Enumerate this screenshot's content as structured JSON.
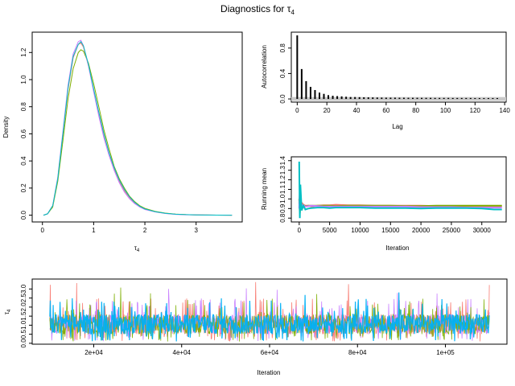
{
  "title": "Diagnostics for τ",
  "title_sub": "4",
  "chart_data": [
    {
      "type": "line",
      "panel": "density",
      "xlabel": "τ",
      "xlabel_sub": "4",
      "ylabel": "Density",
      "xlim": [
        -0.2,
        3.9
      ],
      "ylim": [
        -0.05,
        1.35
      ],
      "xticks": [
        0,
        1,
        2,
        3
      ],
      "yticks": [
        0.0,
        0.2,
        0.4,
        0.6,
        0.8,
        1.0,
        1.2
      ],
      "x": [
        0.02,
        0.1,
        0.2,
        0.3,
        0.4,
        0.5,
        0.6,
        0.7,
        0.75,
        0.8,
        0.9,
        1.0,
        1.1,
        1.2,
        1.3,
        1.4,
        1.5,
        1.6,
        1.7,
        1.8,
        1.9,
        2.0,
        2.2,
        2.4,
        2.6,
        2.8,
        3.0,
        3.2,
        3.4,
        3.7
      ],
      "series": [
        {
          "color": "#f8766d",
          "values": [
            0.0,
            0.01,
            0.07,
            0.27,
            0.6,
            0.93,
            1.16,
            1.26,
            1.27,
            1.24,
            1.1,
            0.92,
            0.75,
            0.59,
            0.46,
            0.34,
            0.25,
            0.18,
            0.13,
            0.09,
            0.06,
            0.045,
            0.025,
            0.013,
            0.007,
            0.004,
            0.002,
            0.001,
            0.0005,
            0.0
          ]
        },
        {
          "color": "#7cae00",
          "values": [
            0.0,
            0.01,
            0.06,
            0.25,
            0.55,
            0.86,
            1.08,
            1.2,
            1.22,
            1.21,
            1.12,
            0.97,
            0.8,
            0.63,
            0.49,
            0.36,
            0.27,
            0.2,
            0.14,
            0.1,
            0.07,
            0.05,
            0.028,
            0.015,
            0.008,
            0.004,
            0.002,
            0.001,
            0.0005,
            0.0
          ]
        },
        {
          "color": "#c77cff",
          "values": [
            0.0,
            0.01,
            0.07,
            0.28,
            0.62,
            0.96,
            1.19,
            1.28,
            1.29,
            1.25,
            1.1,
            0.91,
            0.73,
            0.57,
            0.44,
            0.33,
            0.24,
            0.17,
            0.12,
            0.085,
            0.06,
            0.042,
            0.024,
            0.012,
            0.006,
            0.003,
            0.0015,
            0.001,
            0.0005,
            0.0
          ]
        },
        {
          "color": "#00bfc4",
          "values": [
            0.0,
            0.01,
            0.07,
            0.27,
            0.6,
            0.94,
            1.17,
            1.26,
            1.28,
            1.25,
            1.11,
            0.93,
            0.76,
            0.6,
            0.46,
            0.35,
            0.26,
            0.19,
            0.135,
            0.095,
            0.065,
            0.046,
            0.026,
            0.014,
            0.007,
            0.004,
            0.002,
            0.001,
            0.0005,
            0.0
          ]
        }
      ]
    },
    {
      "type": "bar",
      "panel": "autocorrelation",
      "xlabel": "Lag",
      "ylabel": "Autocorrelation",
      "xlim": [
        -4,
        141
      ],
      "ylim": [
        -0.05,
        1.05
      ],
      "xticks": [
        0,
        20,
        40,
        60,
        80,
        100,
        120,
        140
      ],
      "yticks": [
        0.0,
        0.4,
        0.8
      ],
      "lags": [
        0,
        3,
        6,
        9,
        12,
        15,
        18,
        21,
        24,
        27,
        30,
        33,
        36,
        39,
        42,
        45,
        48,
        51,
        54,
        57,
        60,
        63,
        66,
        69,
        72,
        75,
        78,
        81,
        84,
        87,
        90,
        93,
        96,
        99,
        102,
        105,
        108,
        111,
        114,
        117,
        120,
        123,
        126,
        129,
        132,
        135
      ],
      "values": [
        1.0,
        0.47,
        0.28,
        0.19,
        0.14,
        0.1,
        0.08,
        0.06,
        0.05,
        0.045,
        0.04,
        0.035,
        0.03,
        0.03,
        0.028,
        0.026,
        0.025,
        0.024,
        0.022,
        0.021,
        0.02,
        0.02,
        0.02,
        0.019,
        0.019,
        0.018,
        0.018,
        0.018,
        0.017,
        0.017,
        0.017,
        0.016,
        0.016,
        0.016,
        0.016,
        0.015,
        0.015,
        0.015,
        0.015,
        0.015,
        0.014,
        0.014,
        0.014,
        0.014,
        0.014,
        0.014
      ],
      "band": 0.03
    },
    {
      "type": "line",
      "panel": "running-mean",
      "xlabel": "Iteration",
      "ylabel": "Running mean",
      "xlim": [
        -1300,
        34000
      ],
      "ylim": [
        0.76,
        1.44
      ],
      "xticks": [
        0,
        5000,
        10000,
        15000,
        20000,
        25000,
        30000
      ],
      "yticks": [
        0.8,
        0.9,
        1.0,
        1.1,
        1.2,
        1.3,
        1.4
      ],
      "x": [
        1,
        100,
        200,
        400,
        700,
        1000,
        1500,
        2000,
        3000,
        4000,
        5000,
        6000,
        8000,
        10000,
        12500,
        15000,
        17500,
        20000,
        22500,
        25000,
        27500,
        30000,
        32000,
        33300
      ],
      "series": [
        {
          "color": "#f8766d",
          "values": [
            0.95,
            1.05,
            0.98,
            0.96,
            0.94,
            0.93,
            0.93,
            0.92,
            0.93,
            0.935,
            0.935,
            0.94,
            0.935,
            0.935,
            0.93,
            0.93,
            0.93,
            0.93,
            0.925,
            0.925,
            0.925,
            0.925,
            0.925,
            0.925
          ]
        },
        {
          "color": "#7cae00",
          "values": [
            1.0,
            0.85,
            0.93,
            0.91,
            0.92,
            0.925,
            0.93,
            0.93,
            0.93,
            0.93,
            0.93,
            0.925,
            0.93,
            0.93,
            0.93,
            0.93,
            0.925,
            0.925,
            0.93,
            0.93,
            0.93,
            0.93,
            0.93,
            0.93
          ]
        },
        {
          "color": "#c77cff",
          "values": [
            0.9,
            1.1,
            0.92,
            0.94,
            0.93,
            0.92,
            0.925,
            0.93,
            0.925,
            0.92,
            0.92,
            0.92,
            0.92,
            0.92,
            0.92,
            0.92,
            0.92,
            0.915,
            0.915,
            0.915,
            0.91,
            0.91,
            0.91,
            0.91
          ]
        },
        {
          "color": "#00bfc4",
          "values": [
            1.39,
            0.8,
            1.15,
            0.88,
            0.93,
            0.89,
            0.9,
            0.905,
            0.91,
            0.91,
            0.905,
            0.91,
            0.91,
            0.91,
            0.905,
            0.905,
            0.905,
            0.9,
            0.905,
            0.905,
            0.905,
            0.9,
            0.89,
            0.89
          ]
        }
      ]
    },
    {
      "type": "line",
      "panel": "trace",
      "xlabel": "Iteration",
      "ylabel": "τ",
      "ylabel_sub": "4",
      "xlim": [
        6000,
        114000
      ],
      "ylim": [
        -0.05,
        3.55
      ],
      "xticks": [
        20000,
        40000,
        60000,
        80000,
        100000
      ],
      "xtick_labels": [
        "2e+04",
        "4e+04",
        "6e+04",
        "8e+04",
        "1e+05"
      ],
      "yticks": [
        0.0,
        0.5,
        1.0,
        1.5,
        2.0,
        2.5,
        3.0
      ],
      "x_range": [
        10000,
        110000
      ],
      "central_band": [
        0.5,
        1.6
      ],
      "peak_values": [
        3.4,
        3.1,
        3.1,
        3.0
      ],
      "series_colors": [
        "#f8766d",
        "#c77cff",
        "#7cae00",
        "#00b0f6"
      ]
    }
  ]
}
